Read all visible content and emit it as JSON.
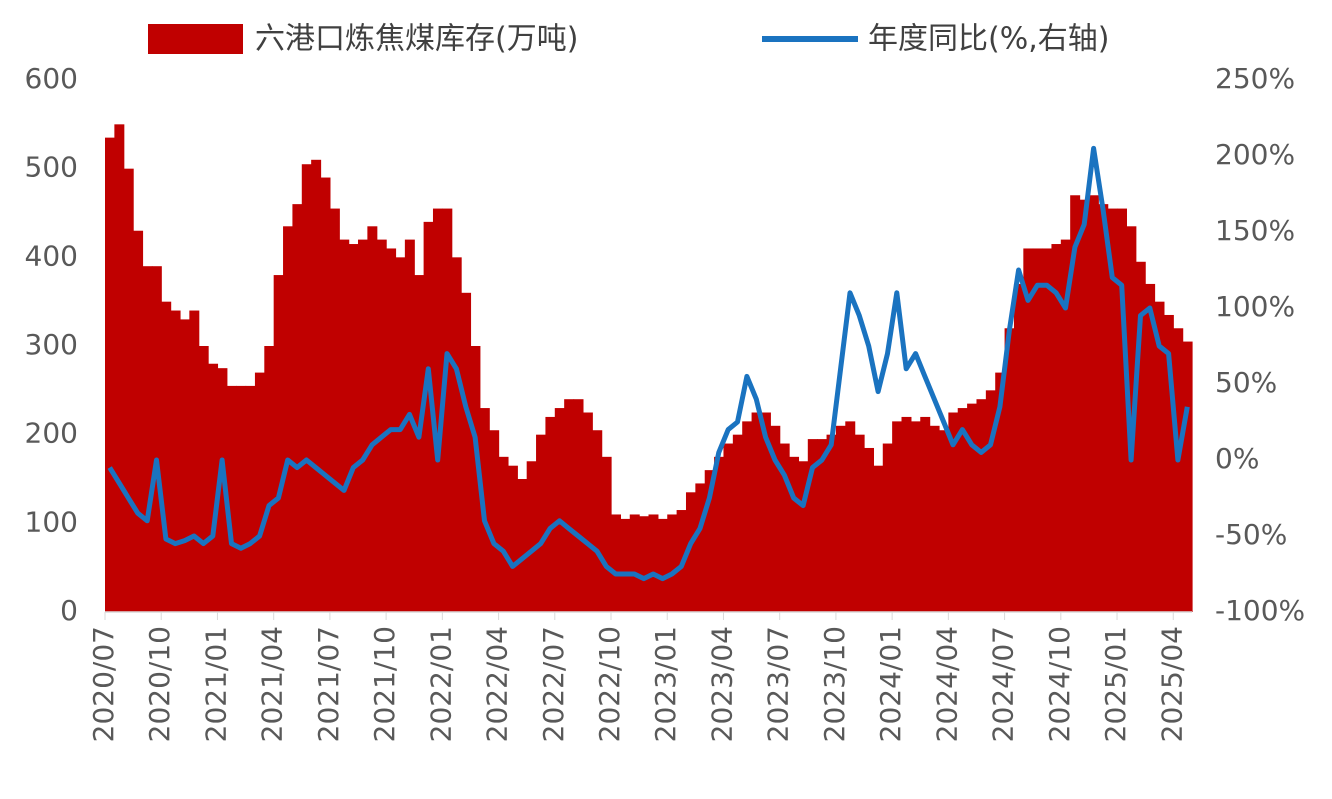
{
  "chart_data": {
    "type": "bar_line",
    "categories": [
      "2020/07",
      null,
      null,
      null,
      null,
      null,
      "2020/10",
      null,
      null,
      null,
      null,
      null,
      "2021/01",
      null,
      null,
      null,
      null,
      null,
      "2021/04",
      null,
      null,
      null,
      null,
      null,
      "2021/07",
      null,
      null,
      null,
      null,
      null,
      "2021/10",
      null,
      null,
      null,
      null,
      null,
      "2022/01",
      null,
      null,
      null,
      null,
      null,
      "2022/04",
      null,
      null,
      null,
      null,
      null,
      "2022/07",
      null,
      null,
      null,
      null,
      null,
      "2022/10",
      null,
      null,
      null,
      null,
      null,
      "2023/01",
      null,
      null,
      null,
      null,
      null,
      "2023/04",
      null,
      null,
      null,
      null,
      null,
      "2023/07",
      null,
      null,
      null,
      null,
      null,
      "2023/10",
      null,
      null,
      null,
      null,
      null,
      "2024/01",
      null,
      null,
      null,
      null,
      null,
      "2024/04",
      null,
      null,
      null,
      null,
      null,
      "2024/07",
      null,
      null,
      null,
      null,
      null,
      "2024/10",
      null,
      null,
      null,
      null,
      null,
      "2025/01",
      null,
      null,
      null,
      null,
      null,
      "2025/04",
      null
    ],
    "series": [
      {
        "name": "六港口炼焦煤库存(万吨)",
        "color": "#c00000",
        "kind": "bar",
        "values": [
          535,
          550,
          500,
          430,
          390,
          390,
          350,
          340,
          330,
          340,
          300,
          280,
          275,
          255,
          255,
          255,
          270,
          300,
          380,
          435,
          460,
          505,
          510,
          490,
          455,
          420,
          415,
          420,
          435,
          420,
          410,
          400,
          420,
          380,
          440,
          455,
          455,
          400,
          360,
          300,
          230,
          205,
          175,
          165,
          150,
          170,
          200,
          220,
          230,
          240,
          240,
          225,
          205,
          175,
          110,
          105,
          110,
          108,
          110,
          105,
          110,
          115,
          135,
          145,
          160,
          175,
          190,
          200,
          215,
          225,
          225,
          210,
          190,
          175,
          170,
          195,
          195,
          200,
          210,
          215,
          200,
          185,
          165,
          190,
          215,
          220,
          215,
          220,
          210,
          205,
          225,
          230,
          235,
          240,
          250,
          270,
          320,
          370,
          410,
          410,
          410,
          415,
          420,
          470,
          465,
          470,
          460,
          455,
          455,
          435,
          395,
          370,
          350,
          335,
          320,
          305
        ]
      },
      {
        "name": "年度同比(%,右轴)",
        "color": "#1a73c0",
        "kind": "line",
        "axis": "y2",
        "values": [
          -5,
          -15,
          -25,
          -35,
          -40,
          0,
          -52,
          -55,
          -53,
          -50,
          -55,
          -50,
          0,
          -55,
          -58,
          -55,
          -50,
          -30,
          -25,
          0,
          -5,
          0,
          -5,
          -10,
          -15,
          -20,
          -5,
          0,
          10,
          15,
          20,
          20,
          30,
          15,
          60,
          0,
          70,
          60,
          35,
          15,
          -40,
          -55,
          -60,
          -70,
          -65,
          -60,
          -55,
          -45,
          -40,
          -45,
          -50,
          -55,
          -60,
          -70,
          -75,
          -75,
          -75,
          -78,
          -75,
          -78,
          -75,
          -70,
          -55,
          -45,
          -25,
          5,
          20,
          25,
          55,
          40,
          15,
          0,
          -10,
          -25,
          -30,
          -5,
          0,
          10,
          60,
          110,
          95,
          75,
          45,
          70,
          110,
          60,
          70,
          55,
          40,
          25,
          10,
          20,
          10,
          5,
          10,
          35,
          85,
          125,
          105,
          115,
          115,
          110,
          100,
          140,
          155,
          205,
          165,
          120,
          115,
          0,
          95,
          100,
          75,
          70,
          0,
          35
        ]
      }
    ],
    "ylim": [
      0,
      600
    ],
    "yticks": [
      0,
      100,
      200,
      300,
      400,
      500,
      600
    ],
    "y2lim": [
      -100,
      250
    ],
    "y2ticks": [
      {
        "value": -100,
        "label": "-100%"
      },
      {
        "value": -50,
        "label": "-50%"
      },
      {
        "value": 0,
        "label": "0%"
      },
      {
        "value": 50,
        "label": "50%"
      },
      {
        "value": 100,
        "label": "100%"
      },
      {
        "value": 150,
        "label": "150%"
      },
      {
        "value": 200,
        "label": "200%"
      },
      {
        "value": 250,
        "label": "250%"
      }
    ],
    "legend": "top"
  }
}
